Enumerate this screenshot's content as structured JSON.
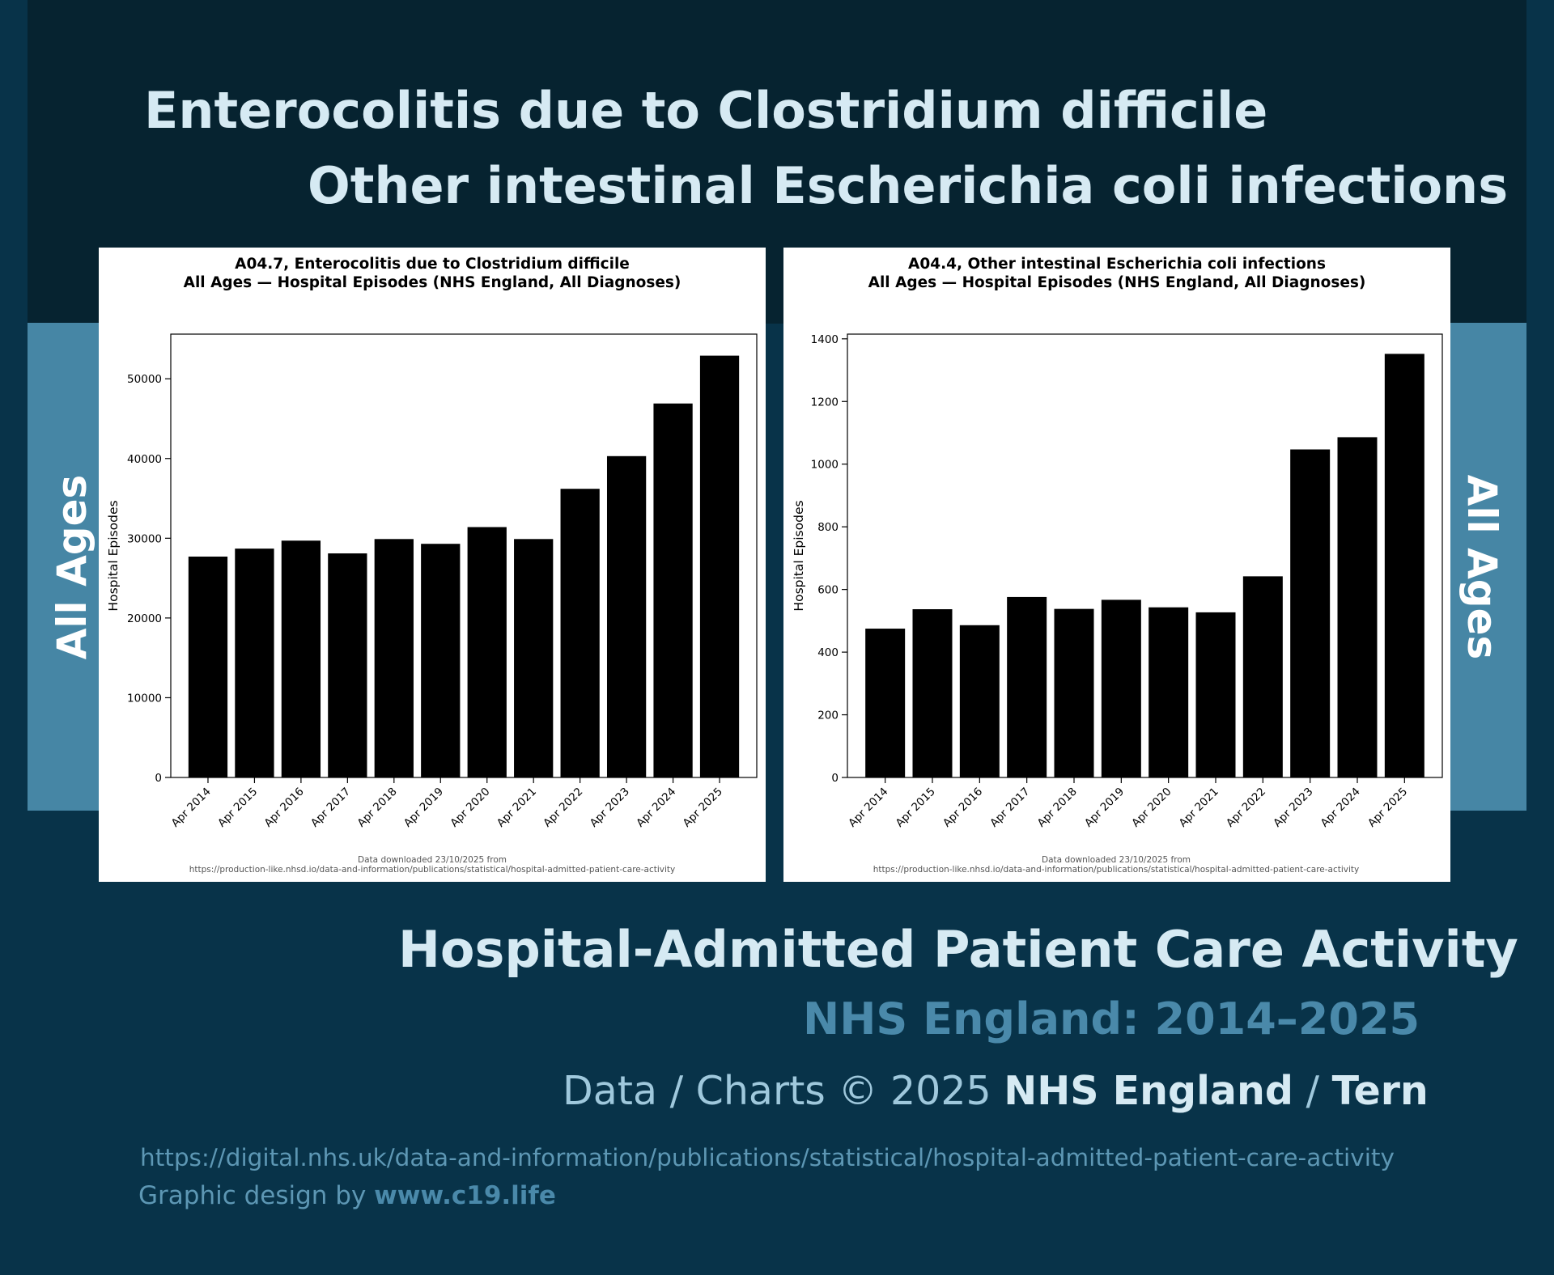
{
  "header": {
    "title_line1": "Enterocolitis due to Clostridium difficile",
    "title_line2": "Other intestinal Escherichia coli infections"
  },
  "side_labels": {
    "left": "All Ages",
    "right": "All Ages"
  },
  "footer": {
    "title": "Hospital-Admitted Patient Care Activity",
    "subtitle": "NHS England: 2014–2025",
    "credit_prefix": "Data / Charts © 2025 ",
    "credit_bold1": "NHS England",
    "credit_sep": " / ",
    "credit_bold2": "Tern",
    "url": "https://digital.nhs.uk/data-and-information/publications/statistical/hospital-admitted-patient-care-activity",
    "design_prefix": "Graphic design by ",
    "design_site": "www.c19.life"
  },
  "colors": {
    "background": "#083349",
    "top_band": "#062330",
    "side_band": "#4686a5",
    "title_text": "#d6eaf3",
    "subtitle_text": "#4a89aa",
    "bar": "#000000"
  },
  "chart_data": [
    {
      "type": "bar",
      "title": "A04.7, Enterocolitis due to Clostridium difficile",
      "subtitle": "All Ages — Hospital Episodes (NHS England, All Diagnoses)",
      "xlabel": "",
      "ylabel": "Hospital Episodes",
      "categories": [
        "Apr 2014",
        "Apr 2015",
        "Apr 2016",
        "Apr 2017",
        "Apr 2018",
        "Apr 2019",
        "Apr 2020",
        "Apr 2021",
        "Apr 2022",
        "Apr 2023",
        "Apr 2024",
        "Apr 2025"
      ],
      "values": [
        27700,
        28700,
        29700,
        28100,
        29900,
        29300,
        31400,
        29900,
        36200,
        40300,
        46900,
        52900
      ],
      "ylim": [
        0,
        55600
      ],
      "yticks": [
        0,
        10000,
        20000,
        30000,
        40000,
        50000
      ],
      "grid": false,
      "note_line1": "Data downloaded 23/10/2025 from",
      "note_line2": "https://production-like.nhsd.io/data-and-information/publications/statistical/hospital-admitted-patient-care-activity"
    },
    {
      "type": "bar",
      "title": "A04.4, Other intestinal Escherichia coli infections",
      "subtitle": "All Ages — Hospital Episodes (NHS England, All Diagnoses)",
      "xlabel": "",
      "ylabel": "Hospital Episodes",
      "categories": [
        "Apr 2014",
        "Apr 2015",
        "Apr 2016",
        "Apr 2017",
        "Apr 2018",
        "Apr 2019",
        "Apr 2020",
        "Apr 2021",
        "Apr 2022",
        "Apr 2023",
        "Apr 2024",
        "Apr 2025"
      ],
      "values": [
        475,
        537,
        486,
        576,
        538,
        567,
        543,
        527,
        642,
        1047,
        1086,
        1352
      ],
      "ylim": [
        0,
        1415
      ],
      "yticks": [
        0,
        200,
        400,
        600,
        800,
        1000,
        1200,
        1400
      ],
      "grid": false,
      "note_line1": "Data downloaded 23/10/2025 from",
      "note_line2": "https://production-like.nhsd.io/data-and-information/publications/statistical/hospital-admitted-patient-care-activity"
    }
  ]
}
